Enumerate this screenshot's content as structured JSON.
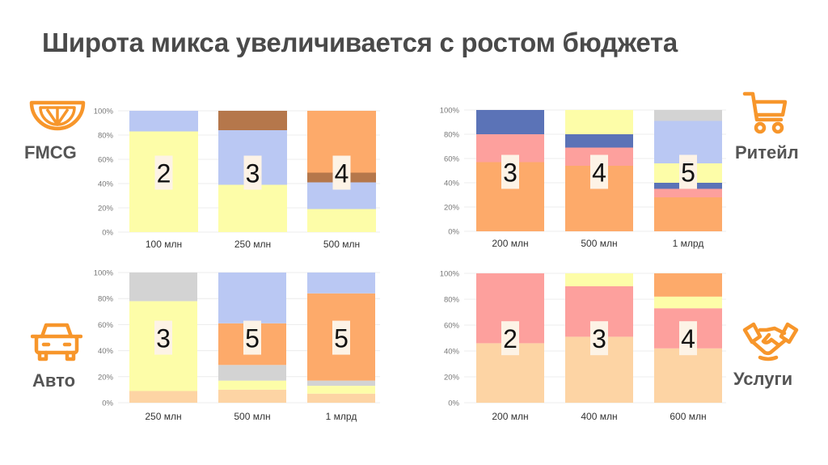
{
  "title": "Широта микса увеличивается с ростом бюджета",
  "colors": {
    "accent": "#F7962B",
    "yellow": "#FDFDA8",
    "lavender": "#BAC8F3",
    "brown": "#B5774B",
    "orange": "#FDAA6A",
    "blue": "#5B73B7",
    "pink": "#FDA09D",
    "gray": "#D3D3D3",
    "peach": "#FDD4A4",
    "count_box": "#FDF3E6"
  },
  "chart_data": [
    {
      "type": "bar",
      "stacked": true,
      "segment": "FMCG",
      "icon": "orange-slice-icon",
      "yticks": [
        "0%",
        "20%",
        "40%",
        "60%",
        "80%",
        "100%"
      ],
      "ylim": [
        0,
        100
      ],
      "grid": true,
      "categories": [
        "100 млн",
        "250 млн",
        "500 млн"
      ],
      "counts": [
        "2",
        "3",
        "4"
      ],
      "stacks": [
        [
          {
            "color": "yellow",
            "value": 83
          },
          {
            "color": "lavender",
            "value": 17
          }
        ],
        [
          {
            "color": "yellow",
            "value": 39
          },
          {
            "color": "lavender",
            "value": 45
          },
          {
            "color": "brown",
            "value": 16
          }
        ],
        [
          {
            "color": "yellow",
            "value": 19
          },
          {
            "color": "lavender",
            "value": 22
          },
          {
            "color": "brown",
            "value": 8
          },
          {
            "color": "orange",
            "value": 51
          }
        ]
      ]
    },
    {
      "type": "bar",
      "stacked": true,
      "segment": "Ритейл",
      "icon": "shopping-cart-icon",
      "yticks": [
        "0%",
        "20%",
        "40%",
        "60%",
        "80%",
        "100%"
      ],
      "ylim": [
        0,
        100
      ],
      "grid": true,
      "categories": [
        "200 млн",
        "500 млн",
        "1 млрд"
      ],
      "counts": [
        "3",
        "4",
        "5"
      ],
      "stacks": [
        [
          {
            "color": "orange",
            "value": 57
          },
          {
            "color": "pink",
            "value": 23
          },
          {
            "color": "blue",
            "value": 20
          }
        ],
        [
          {
            "color": "orange",
            "value": 54
          },
          {
            "color": "pink",
            "value": 15
          },
          {
            "color": "blue",
            "value": 11
          },
          {
            "color": "yellow",
            "value": 20
          }
        ],
        [
          {
            "color": "orange",
            "value": 28
          },
          {
            "color": "pink",
            "value": 7
          },
          {
            "color": "blue",
            "value": 5
          },
          {
            "color": "yellow",
            "value": 16
          },
          {
            "color": "lavender",
            "value": 35
          },
          {
            "color": "gray",
            "value": 9
          }
        ]
      ]
    },
    {
      "type": "bar",
      "stacked": true,
      "segment": "Авто",
      "icon": "car-icon",
      "yticks": [
        "0%",
        "20%",
        "40%",
        "60%",
        "80%",
        "100%"
      ],
      "ylim": [
        0,
        100
      ],
      "grid": true,
      "categories": [
        "250 млн",
        "500 млн",
        "1 млрд"
      ],
      "counts": [
        "3",
        "5",
        "5"
      ],
      "stacks": [
        [
          {
            "color": "peach",
            "value": 9
          },
          {
            "color": "yellow",
            "value": 69
          },
          {
            "color": "gray",
            "value": 22
          }
        ],
        [
          {
            "color": "peach",
            "value": 10
          },
          {
            "color": "yellow",
            "value": 7
          },
          {
            "color": "gray",
            "value": 12
          },
          {
            "color": "orange",
            "value": 32
          },
          {
            "color": "lavender",
            "value": 39
          }
        ],
        [
          {
            "color": "peach",
            "value": 7
          },
          {
            "color": "yellow",
            "value": 6
          },
          {
            "color": "gray",
            "value": 4
          },
          {
            "color": "orange",
            "value": 67
          },
          {
            "color": "lavender",
            "value": 16
          }
        ]
      ]
    },
    {
      "type": "bar",
      "stacked": true,
      "segment": "Услуги",
      "icon": "handshake-icon",
      "yticks": [
        "0%",
        "20%",
        "40%",
        "60%",
        "80%",
        "100%"
      ],
      "ylim": [
        0,
        100
      ],
      "grid": true,
      "categories": [
        "200 млн",
        "400 млн",
        "600 млн"
      ],
      "counts": [
        "2",
        "3",
        "4"
      ],
      "stacks": [
        [
          {
            "color": "peach",
            "value": 46
          },
          {
            "color": "pink",
            "value": 54
          }
        ],
        [
          {
            "color": "peach",
            "value": 51
          },
          {
            "color": "pink",
            "value": 39
          },
          {
            "color": "yellow",
            "value": 10
          }
        ],
        [
          {
            "color": "peach",
            "value": 42
          },
          {
            "color": "pink",
            "value": 31
          },
          {
            "color": "yellow",
            "value": 9
          },
          {
            "color": "orange",
            "value": 18
          }
        ]
      ]
    }
  ]
}
